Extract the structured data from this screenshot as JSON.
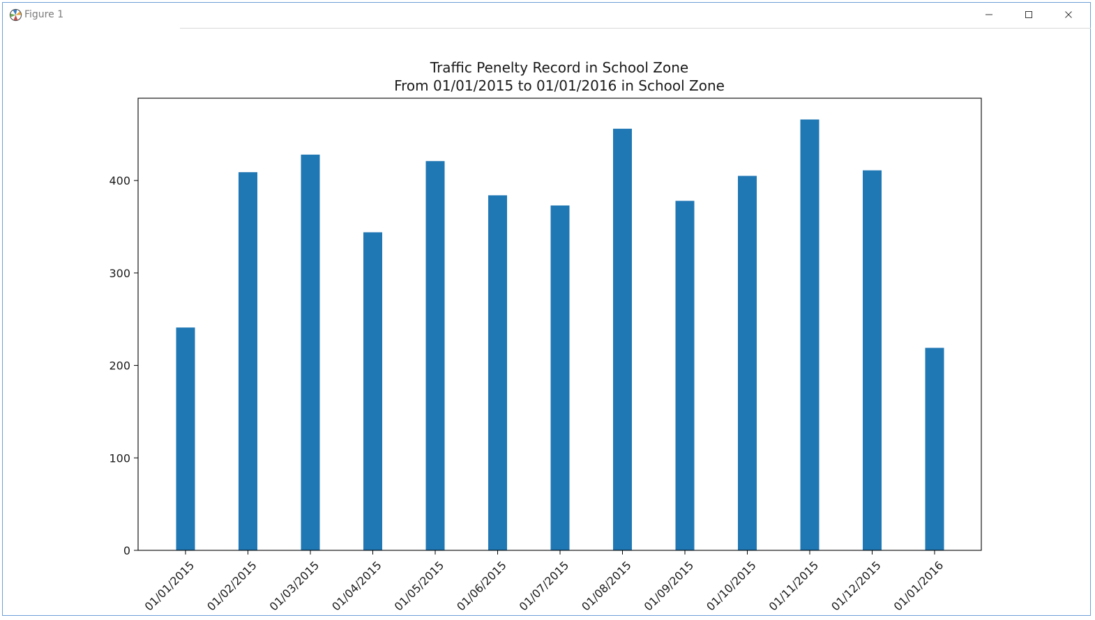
{
  "window": {
    "title": "Figure 1",
    "icons": {
      "app": "matplotlib-icon",
      "minimize": "minimize-icon",
      "maximize": "maximize-icon",
      "close": "close-icon"
    }
  },
  "chart_data": {
    "type": "bar",
    "title_lines": [
      "Traffic Penelty Record in School Zone",
      "From 01/01/2015 to 01/01/2016 in School Zone"
    ],
    "xlabel": "",
    "ylabel": "",
    "categories": [
      "01/01/2015",
      "01/02/2015",
      "01/03/2015",
      "01/04/2015",
      "01/05/2015",
      "01/06/2015",
      "01/07/2015",
      "01/08/2015",
      "01/09/2015",
      "01/10/2015",
      "01/11/2015",
      "01/12/2015",
      "01/01/2016"
    ],
    "values": [
      241,
      409,
      428,
      344,
      421,
      384,
      373,
      456,
      378,
      405,
      466,
      411,
      219
    ],
    "ylim": [
      0,
      489
    ],
    "yticks": [
      0,
      100,
      200,
      300,
      400
    ],
    "bar_color": "#1f77b4",
    "grid": false,
    "legend": "none"
  }
}
